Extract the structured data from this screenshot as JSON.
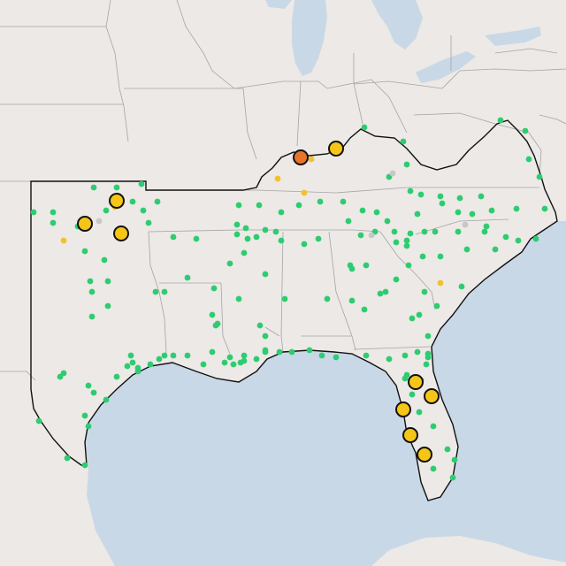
{
  "map": {
    "base": "light-gray-canvas",
    "region_outlined": "south-central-and-southeast-us",
    "marker_legend": {
      "small_green": "#2ecc71",
      "small_gold": "#f2c12e",
      "small_gray": "#c7c7c7",
      "large_gold": "#f5c518",
      "large_orange": "#e8742a"
    }
  },
  "colors": {
    "water": "#c9d8e6",
    "land": "#ece9e6",
    "state_lines": "#9f9f9f",
    "region_outline": "#111111"
  }
}
